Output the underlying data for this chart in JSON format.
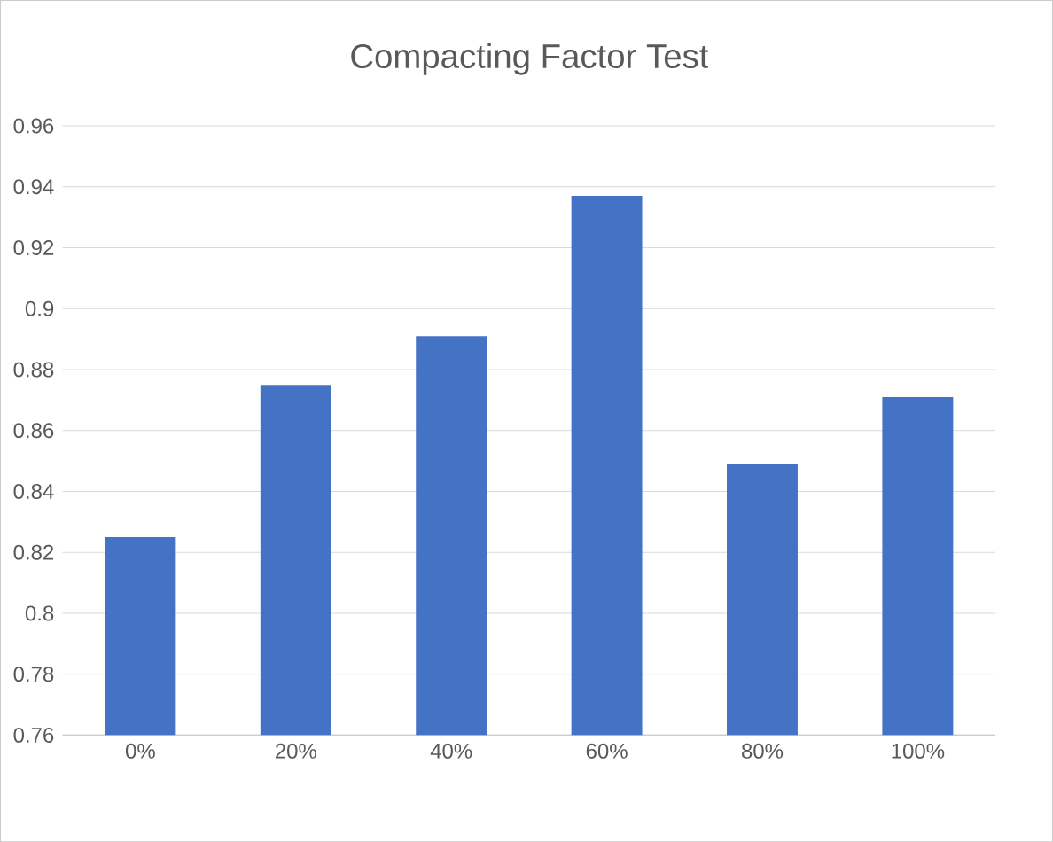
{
  "chart_data": {
    "type": "bar",
    "title": "Compacting Factor Test",
    "categories": [
      "0%",
      "20%",
      "40%",
      "60%",
      "80%",
      "100%"
    ],
    "values": [
      0.825,
      0.875,
      0.891,
      0.937,
      0.849,
      0.871
    ],
    "color": "#4472c4",
    "ylim": [
      0.76,
      0.96
    ],
    "yticks": [
      0.76,
      0.78,
      0.8,
      0.82,
      0.84,
      0.86,
      0.88,
      0.9,
      0.92,
      0.94,
      0.96
    ],
    "grid": "y"
  }
}
